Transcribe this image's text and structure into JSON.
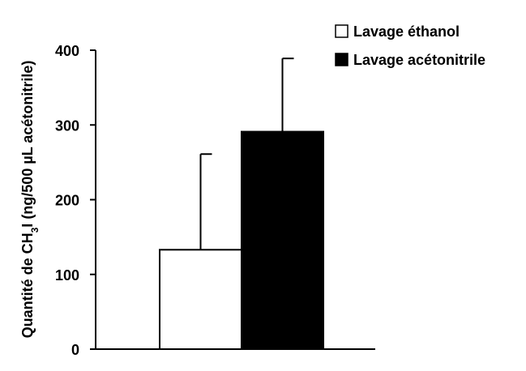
{
  "chart_data": {
    "type": "bar",
    "categories": [
      ""
    ],
    "series": [
      {
        "name": "Lavage éthanol",
        "values": [
          133
        ],
        "error": [
          128
        ],
        "color": "#ffffff"
      },
      {
        "name": "Lavage acétonitrile",
        "values": [
          291
        ],
        "error": [
          98
        ],
        "color": "#000000"
      }
    ],
    "ylabel": {
      "prefix": "Quantité de CH",
      "subscript": "3",
      "suffix": "I (ng/500 µL acétonitrile)"
    },
    "ylim": [
      0,
      400
    ],
    "yticks": [
      "0",
      "100",
      "200",
      "300",
      "400"
    ],
    "grid": false,
    "legend_position": "top-right",
    "axis_color": "#000000",
    "bar_edge_color": "#000000"
  }
}
